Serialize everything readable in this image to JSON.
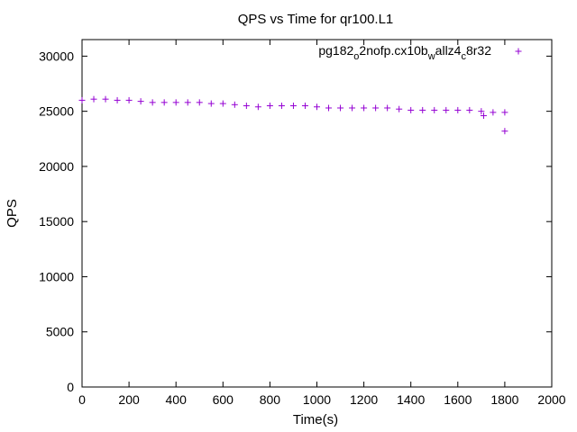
{
  "chart_data": {
    "type": "scatter",
    "title": "QPS vs Time for qr100.L1",
    "xlabel": "Time(s)",
    "ylabel": "QPS",
    "xlim": [
      0,
      2000
    ],
    "ylim": [
      0,
      31500
    ],
    "xticks": [
      0,
      200,
      400,
      600,
      800,
      1000,
      1200,
      1400,
      1600,
      1800,
      2000
    ],
    "yticks": [
      0,
      5000,
      10000,
      15000,
      20000,
      25000,
      30000
    ],
    "grid": false,
    "legend_position": "top-right",
    "marker": "plus",
    "series": [
      {
        "name_parts": [
          {
            "t": "pg182",
            "sub": false
          },
          {
            "t": "o",
            "sub": true
          },
          {
            "t": "2nofp.cx10b",
            "sub": false
          },
          {
            "t": "w",
            "sub": true
          },
          {
            "t": "allz4",
            "sub": false
          },
          {
            "t": "c",
            "sub": true
          },
          {
            "t": "8r32",
            "sub": false
          }
        ],
        "color": "#9400d3",
        "x": [
          0,
          50,
          100,
          150,
          200,
          250,
          300,
          350,
          400,
          450,
          500,
          550,
          600,
          650,
          700,
          750,
          800,
          850,
          900,
          950,
          1000,
          1050,
          1100,
          1150,
          1200,
          1250,
          1300,
          1350,
          1400,
          1450,
          1500,
          1550,
          1600,
          1650,
          1700,
          1750,
          1800,
          1710,
          1800
        ],
        "y": [
          26000,
          26100,
          26100,
          26000,
          26000,
          25900,
          25800,
          25800,
          25800,
          25800,
          25800,
          25700,
          25700,
          25600,
          25500,
          25400,
          25500,
          25500,
          25500,
          25500,
          25400,
          25300,
          25300,
          25300,
          25300,
          25300,
          25300,
          25200,
          25100,
          25100,
          25100,
          25100,
          25100,
          25100,
          25000,
          24900,
          24900,
          24600,
          23200
        ]
      }
    ]
  }
}
